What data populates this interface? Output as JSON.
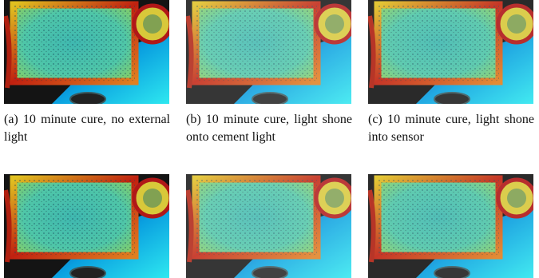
{
  "subfigures": [
    {
      "label": "(a)",
      "caption": "10 minute cure, no external light"
    },
    {
      "label": "(b)",
      "caption": "10 minute cure, light shone onto cement light"
    },
    {
      "label": "(c)",
      "caption": "10 minute cure, light shone into sensor"
    }
  ]
}
